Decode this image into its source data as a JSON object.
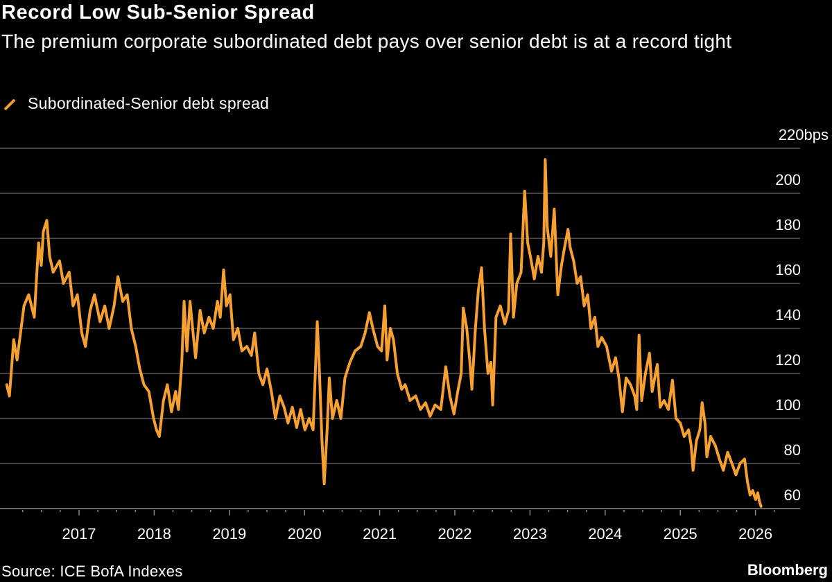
{
  "header": {
    "title": "Record Low Sub-Senior Spread",
    "subtitle": "The premium corporate subordinated debt pays over senior debt is at a record tight"
  },
  "legend": {
    "label": "Subordinated-Senior debt spread",
    "icon": "slash-line-swatch"
  },
  "footer": {
    "source": "Source: ICE BofA Indexes",
    "brand": "Bloomberg"
  },
  "colors": {
    "background": "#000000",
    "series": "#f7a032",
    "grid": "#5a5a5a",
    "text": "#ffffff"
  },
  "chart_data": {
    "type": "line",
    "title": "Record Low Sub-Senior Spread",
    "xlabel": "",
    "ylabel": "",
    "ylim": [
      60,
      220
    ],
    "xlim": [
      "2016-01-01",
      "2026-03-01"
    ],
    "grid": true,
    "legend_position": "top-left",
    "y_ticks": [
      {
        "value": 220,
        "label": "220bps"
      },
      {
        "value": 200,
        "label": "200"
      },
      {
        "value": 180,
        "label": "180"
      },
      {
        "value": 160,
        "label": "160"
      },
      {
        "value": 140,
        "label": "140"
      },
      {
        "value": 120,
        "label": "120"
      },
      {
        "value": 100,
        "label": "100"
      },
      {
        "value": 80,
        "label": "80"
      },
      {
        "value": 60,
        "label": "60"
      }
    ],
    "x_ticks": [
      "2017",
      "2018",
      "2019",
      "2020",
      "2021",
      "2022",
      "2023",
      "2024",
      "2025",
      "2026"
    ],
    "series": [
      {
        "name": "Subordinated-Senior debt spread",
        "unit": "bps",
        "x": [
          "2016-01-15",
          "2016-01-28",
          "2016-02-18",
          "2016-03-05",
          "2016-04-08",
          "2016-05-01",
          "2016-05-28",
          "2016-06-18",
          "2016-07-01",
          "2016-07-11",
          "2016-07-28",
          "2016-08-11",
          "2016-08-28",
          "2016-09-28",
          "2016-10-17",
          "2016-11-14",
          "2016-12-03",
          "2016-12-24",
          "2017-01-14",
          "2017-02-01",
          "2017-02-24",
          "2017-03-17",
          "2017-04-13",
          "2017-05-06",
          "2017-05-27",
          "2017-06-20",
          "2017-07-09",
          "2017-08-01",
          "2017-08-23",
          "2017-09-12",
          "2017-10-03",
          "2017-10-23",
          "2017-11-12",
          "2017-12-06",
          "2017-12-29",
          "2018-01-12",
          "2018-01-26",
          "2018-02-15",
          "2018-03-06",
          "2018-03-26",
          "2018-04-15",
          "2018-04-29",
          "2018-05-15",
          "2018-05-26",
          "2018-06-09",
          "2018-06-24",
          "2018-07-12",
          "2018-07-21",
          "2018-08-12",
          "2018-09-01",
          "2018-09-24",
          "2018-10-15",
          "2018-11-04",
          "2018-11-18",
          "2018-12-04",
          "2018-12-18",
          "2019-01-04",
          "2019-01-21",
          "2019-02-11",
          "2019-03-03",
          "2019-03-27",
          "2019-04-18",
          "2019-05-04",
          "2019-05-24",
          "2019-06-13",
          "2019-07-03",
          "2019-07-24",
          "2019-08-13",
          "2019-09-03",
          "2019-09-24",
          "2019-10-13",
          "2019-11-03",
          "2019-11-24",
          "2019-12-13",
          "2020-01-03",
          "2020-01-24",
          "2020-02-12",
          "2020-03-03",
          "2020-03-12",
          "2020-03-26",
          "2020-04-06",
          "2020-04-20",
          "2020-05-01",
          "2020-05-16",
          "2020-06-06",
          "2020-06-26",
          "2020-07-16",
          "2020-08-09",
          "2020-09-03",
          "2020-10-01",
          "2020-10-22",
          "2020-11-12",
          "2020-11-29",
          "2020-12-22",
          "2021-01-10",
          "2021-01-26",
          "2021-02-06",
          "2021-02-22",
          "2021-03-09",
          "2021-03-28",
          "2021-04-18",
          "2021-05-05",
          "2021-05-28",
          "2021-06-25",
          "2021-07-18",
          "2021-08-12",
          "2021-09-03",
          "2021-09-27",
          "2021-10-25",
          "2021-11-18",
          "2021-12-08",
          "2021-12-28",
          "2022-01-15",
          "2022-02-01",
          "2022-02-11",
          "2022-02-28",
          "2022-03-15",
          "2022-03-25",
          "2022-04-11",
          "2022-04-25",
          "2022-05-11",
          "2022-05-25",
          "2022-06-11",
          "2022-06-25",
          "2022-07-04",
          "2022-07-20",
          "2022-08-10",
          "2022-09-01",
          "2022-09-19",
          "2022-09-29",
          "2022-10-13",
          "2022-10-29",
          "2022-11-19",
          "2022-12-06",
          "2022-12-21",
          "2023-01-07",
          "2023-01-22",
          "2023-02-09",
          "2023-02-26",
          "2023-03-09",
          "2023-03-16",
          "2023-03-26",
          "2023-04-12",
          "2023-04-29",
          "2023-05-16",
          "2023-06-03",
          "2023-06-18",
          "2023-07-05",
          "2023-07-15",
          "2023-08-01",
          "2023-08-18",
          "2023-09-04",
          "2023-09-21",
          "2023-10-08",
          "2023-10-24",
          "2023-11-12",
          "2023-11-27",
          "2023-12-15",
          "2024-01-08",
          "2024-02-01",
          "2024-02-21",
          "2024-03-08",
          "2024-03-25",
          "2024-04-12",
          "2024-05-04",
          "2024-05-24",
          "2024-06-03",
          "2024-06-14",
          "2024-06-27",
          "2024-07-15",
          "2024-08-04",
          "2024-08-17",
          "2024-09-11",
          "2024-09-25",
          "2024-10-14",
          "2024-11-04",
          "2024-11-24",
          "2024-12-11",
          "2025-01-01",
          "2025-01-20",
          "2025-02-10",
          "2025-02-23",
          "2025-03-04",
          "2025-03-20",
          "2025-04-06",
          "2025-04-17",
          "2025-05-01",
          "2025-05-10",
          "2025-05-28",
          "2025-06-20",
          "2025-07-10",
          "2025-07-29",
          "2025-08-19",
          "2025-09-09",
          "2025-09-28",
          "2025-10-18",
          "2025-11-09",
          "2025-11-23",
          "2025-12-06",
          "2025-12-19",
          "2026-01-02",
          "2026-01-12",
          "2026-01-21",
          "2026-01-28"
        ],
        "values": [
          115,
          110,
          135,
          126,
          150,
          155,
          145,
          178,
          168,
          183,
          188,
          172,
          165,
          170,
          160,
          165,
          150,
          155,
          138,
          132,
          148,
          155,
          143,
          150,
          140,
          150,
          163,
          152,
          155,
          140,
          132,
          122,
          115,
          112,
          100,
          95,
          92,
          108,
          115,
          103,
          112,
          104,
          125,
          152,
          130,
          152,
          135,
          127,
          148,
          138,
          145,
          140,
          152,
          145,
          166,
          150,
          155,
          135,
          140,
          130,
          132,
          128,
          138,
          120,
          115,
          122,
          112,
          100,
          110,
          105,
          98,
          105,
          96,
          104,
          95,
          100,
          95,
          143,
          125,
          90,
          71,
          95,
          118,
          100,
          108,
          100,
          118,
          125,
          130,
          132,
          138,
          147,
          140,
          132,
          130,
          150,
          126,
          140,
          135,
          120,
          113,
          115,
          108,
          110,
          104,
          107,
          101,
          106,
          104,
          123,
          110,
          102,
          112,
          120,
          149,
          140,
          125,
          113,
          140,
          157,
          167,
          140,
          120,
          125,
          106,
          145,
          150,
          142,
          148,
          182,
          145,
          160,
          165,
          201,
          178,
          170,
          162,
          172,
          165,
          178,
          215,
          185,
          172,
          193,
          155,
          168,
          176,
          184,
          176,
          170,
          160,
          163,
          150,
          155,
          140,
          145,
          132,
          136,
          132,
          121,
          127,
          118,
          103,
          118,
          115,
          110,
          104,
          137,
          108,
          120,
          129,
          112,
          124,
          105,
          108,
          104,
          117,
          100,
          98,
          92,
          95,
          88,
          77,
          90,
          95,
          107,
          98,
          83,
          92,
          88,
          82,
          77,
          85,
          80,
          75,
          80,
          82,
          72,
          66,
          68,
          64,
          67,
          63,
          61
        ]
      }
    ]
  }
}
